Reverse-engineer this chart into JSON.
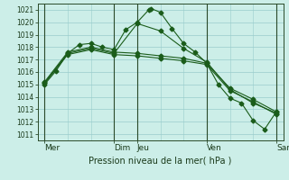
{
  "title": "",
  "xlabel": "Pression niveau de la mer( hPa )",
  "ylabel": "",
  "bg_color": "#cceee8",
  "grid_color": "#99cccc",
  "line_color": "#1a5c1a",
  "ylim": [
    1010.5,
    1021.5
  ],
  "yticks": [
    1011,
    1012,
    1013,
    1014,
    1015,
    1016,
    1017,
    1018,
    1019,
    1020,
    1021
  ],
  "xtick_labels": [
    "Mer",
    "Dim",
    "Jeu",
    "Ven",
    "Sam"
  ],
  "xtick_positions": [
    0,
    3,
    4,
    7,
    10
  ],
  "vlines": [
    0,
    3,
    4,
    7,
    10
  ],
  "series": [
    {
      "x": [
        0,
        0.5,
        1.0,
        1.5,
        2.0,
        2.5,
        3.0,
        3.5,
        4.0,
        4.5,
        4.6,
        5.0,
        5.5,
        6.0,
        6.5,
        7.0,
        7.5,
        8.0,
        8.5,
        9.0,
        9.5,
        10.0
      ],
      "y": [
        1015.0,
        1016.1,
        1017.5,
        1018.2,
        1018.3,
        1018.0,
        1017.8,
        1019.4,
        1020.0,
        1021.0,
        1021.1,
        1020.8,
        1019.5,
        1018.3,
        1017.6,
        1016.7,
        1015.0,
        1013.9,
        1013.5,
        1012.1,
        1011.4,
        1012.8
      ]
    },
    {
      "x": [
        0,
        1,
        2,
        3,
        4,
        5,
        6,
        7,
        8,
        9,
        10
      ],
      "y": [
        1015.1,
        1017.5,
        1017.9,
        1017.5,
        1019.9,
        1019.3,
        1017.9,
        1016.8,
        1014.6,
        1013.5,
        1012.7
      ]
    },
    {
      "x": [
        0,
        1,
        2,
        3,
        4,
        5,
        6,
        7,
        8,
        9,
        10
      ],
      "y": [
        1015.2,
        1017.6,
        1018.0,
        1017.6,
        1017.5,
        1017.3,
        1017.1,
        1016.7,
        1014.7,
        1013.8,
        1012.8
      ]
    },
    {
      "x": [
        0,
        1,
        2,
        3,
        4,
        5,
        6,
        7,
        8,
        9,
        10
      ],
      "y": [
        1015.1,
        1017.4,
        1017.8,
        1017.4,
        1017.3,
        1017.1,
        1016.9,
        1016.6,
        1014.5,
        1013.6,
        1012.6
      ]
    }
  ]
}
